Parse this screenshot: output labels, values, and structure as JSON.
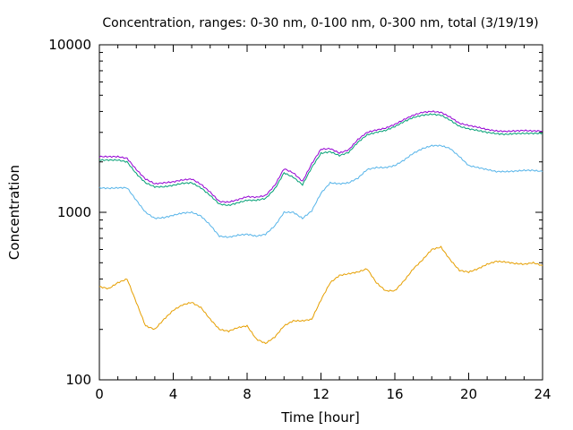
{
  "chart_data": {
    "type": "line",
    "title": "Concentration, ranges: 0-30 nm, 0-100 nm, 0-300 nm, total (3/19/19)",
    "xlabel": "Time [hour]",
    "ylabel": "Concentration",
    "xlim": [
      0,
      24
    ],
    "ylim": [
      100,
      10000
    ],
    "yscale": "log",
    "xticks": [
      "0",
      "4",
      "8",
      "12",
      "16",
      "20",
      "24"
    ],
    "yticks": [
      "100",
      "1000",
      "10000"
    ],
    "grid": false,
    "series": [
      {
        "color": "#e69f00",
        "x": [
          0,
          0.5,
          1,
          1.5,
          2,
          2.5,
          3,
          3.5,
          4,
          4.5,
          5,
          5.5,
          6,
          6.5,
          7,
          7.5,
          8,
          8.5,
          9,
          9.5,
          10,
          10.5,
          11,
          11.5,
          12,
          12.5,
          13,
          13.5,
          14,
          14.5,
          15,
          15.5,
          16,
          16.5,
          17,
          17.5,
          18,
          18.5,
          19,
          19.5,
          20,
          20.5,
          21,
          21.5,
          22,
          22.5,
          23,
          23.5,
          24
        ],
        "values": [
          360,
          350,
          380,
          400,
          290,
          210,
          200,
          230,
          260,
          280,
          290,
          270,
          230,
          200,
          195,
          205,
          210,
          175,
          165,
          180,
          210,
          225,
          225,
          230,
          300,
          380,
          420,
          430,
          440,
          460,
          380,
          340,
          340,
          390,
          460,
          520,
          600,
          620,
          520,
          450,
          440,
          460,
          490,
          510,
          505,
          495,
          490,
          500,
          480
        ]
      },
      {
        "color": "#56b4e9",
        "x": [
          0,
          0.5,
          1,
          1.5,
          2,
          2.5,
          3,
          3.5,
          4,
          4.5,
          5,
          5.5,
          6,
          6.5,
          7,
          7.5,
          8,
          8.5,
          9,
          9.5,
          10,
          10.5,
          11,
          11.5,
          12,
          12.5,
          13,
          13.5,
          14,
          14.5,
          15,
          15.5,
          16,
          16.5,
          17,
          17.5,
          18,
          18.5,
          19,
          19.5,
          20,
          20.5,
          21,
          21.5,
          22,
          22.5,
          23,
          23.5,
          24
        ],
        "values": [
          1400,
          1390,
          1400,
          1400,
          1180,
          1000,
          920,
          930,
          960,
          990,
          1000,
          950,
          840,
          720,
          710,
          730,
          740,
          720,
          740,
          830,
          1000,
          1000,
          920,
          1020,
          1300,
          1500,
          1480,
          1500,
          1600,
          1800,
          1850,
          1850,
          1900,
          2050,
          2250,
          2400,
          2500,
          2500,
          2400,
          2150,
          1900,
          1850,
          1800,
          1750,
          1750,
          1760,
          1780,
          1780,
          1750
        ]
      },
      {
        "color": "#009e73",
        "x": [
          0,
          0.5,
          1,
          1.5,
          2,
          2.5,
          3,
          3.5,
          4,
          4.5,
          5,
          5.5,
          6,
          6.5,
          7,
          7.5,
          8,
          8.5,
          9,
          9.5,
          10,
          10.5,
          11,
          11.5,
          12,
          12.5,
          13,
          13.5,
          14,
          14.5,
          15,
          15.5,
          16,
          16.5,
          17,
          17.5,
          18,
          18.5,
          19,
          19.5,
          20,
          20.5,
          21,
          21.5,
          22,
          22.5,
          23,
          23.5,
          24
        ],
        "values": [
          2050,
          2050,
          2050,
          2000,
          1700,
          1500,
          1420,
          1420,
          1450,
          1490,
          1500,
          1400,
          1260,
          1120,
          1100,
          1140,
          1180,
          1180,
          1210,
          1380,
          1720,
          1620,
          1460,
          1850,
          2250,
          2300,
          2180,
          2280,
          2620,
          2900,
          3000,
          3080,
          3250,
          3480,
          3680,
          3800,
          3850,
          3800,
          3550,
          3260,
          3150,
          3080,
          3000,
          2950,
          2920,
          2950,
          2960,
          2960,
          2960
        ]
      },
      {
        "color": "#9400d3",
        "x": [
          0,
          0.5,
          1,
          1.5,
          2,
          2.5,
          3,
          3.5,
          4,
          4.5,
          5,
          5.5,
          6,
          6.5,
          7,
          7.5,
          8,
          8.5,
          9,
          9.5,
          10,
          10.5,
          11,
          11.5,
          12,
          12.5,
          13,
          13.5,
          14,
          14.5,
          15,
          15.5,
          16,
          16.5,
          17,
          17.5,
          18,
          18.5,
          19,
          19.5,
          20,
          20.5,
          21,
          21.5,
          22,
          22.5,
          23,
          23.5,
          24
        ],
        "values": [
          2150,
          2150,
          2150,
          2100,
          1800,
          1580,
          1480,
          1500,
          1520,
          1560,
          1580,
          1470,
          1320,
          1160,
          1150,
          1190,
          1240,
          1230,
          1260,
          1450,
          1820,
          1720,
          1530,
          1950,
          2380,
          2400,
          2260,
          2360,
          2720,
          3000,
          3100,
          3180,
          3350,
          3580,
          3800,
          3950,
          4000,
          3950,
          3700,
          3400,
          3300,
          3220,
          3120,
          3060,
          3040,
          3060,
          3080,
          3060,
          3060
        ]
      }
    ]
  }
}
